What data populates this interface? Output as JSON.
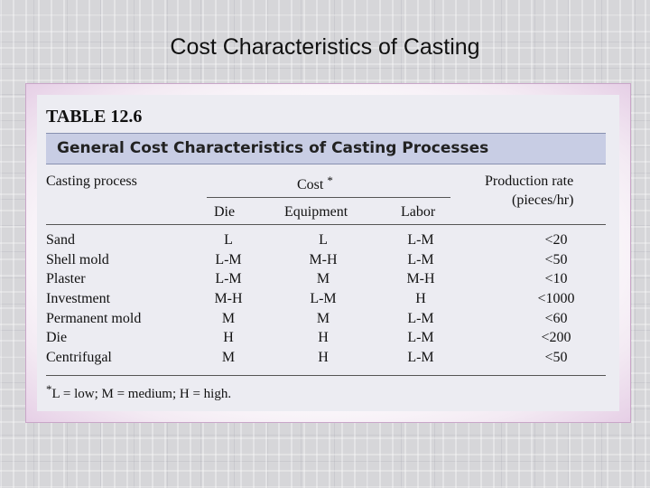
{
  "slide": {
    "title": "Cost Characteristics of Casting"
  },
  "table": {
    "label": "TABLE 12.6",
    "caption": "General Cost Characteristics of Casting Processes",
    "headers": {
      "process": "Casting process",
      "cost": "Cost",
      "cost_marker": "*",
      "rate_line1": "Production rate",
      "rate_line2": "(pieces/hr)",
      "die": "Die",
      "equipment": "Equipment",
      "labor": "Labor"
    },
    "rows": [
      {
        "process": "Sand",
        "die": "L",
        "equipment": "L",
        "labor": "L-M",
        "rate": "<20"
      },
      {
        "process": "Shell mold",
        "die": "L-M",
        "equipment": "M-H",
        "labor": "L-M",
        "rate": "<50"
      },
      {
        "process": "Plaster",
        "die": "L-M",
        "equipment": "M",
        "labor": "M-H",
        "rate": "<10"
      },
      {
        "process": "Investment",
        "die": "M-H",
        "equipment": "L-M",
        "labor": "H",
        "rate": "<1000"
      },
      {
        "process": "Permanent mold",
        "die": "M",
        "equipment": "M",
        "labor": "L-M",
        "rate": "<60"
      },
      {
        "process": "Die",
        "die": "H",
        "equipment": "H",
        "labor": "L-M",
        "rate": "<200"
      },
      {
        "process": "Centrifugal",
        "die": "M",
        "equipment": "H",
        "labor": "L-M",
        "rate": "<50"
      }
    ],
    "footnote_marker": "*",
    "footnote": "L = low; M = medium; H = high."
  },
  "colors": {
    "caption_bar": "#c8cde4",
    "panel": "#ececf2",
    "frame_border": "#c9a6c8"
  }
}
